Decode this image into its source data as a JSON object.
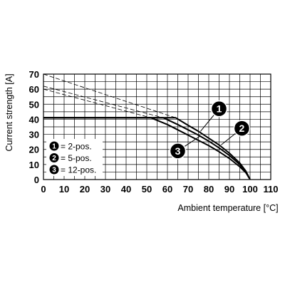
{
  "chart_data": {
    "type": "line",
    "xlabel": "Ambient temperature [°C]",
    "ylabel": "Current strength [A]",
    "xlim": [
      0,
      110
    ],
    "ylim": [
      0,
      70
    ],
    "x_ticks": [
      0,
      10,
      20,
      30,
      40,
      50,
      60,
      70,
      80,
      90,
      100,
      110
    ],
    "y_ticks": [
      0,
      10,
      20,
      30,
      40,
      50,
      60,
      70
    ],
    "x_grid_step": 5,
    "y_grid_step": 5,
    "grid": true,
    "legend_position": "bottom-left",
    "legend": [
      {
        "marker": "1",
        "label": "= 2-pos."
      },
      {
        "marker": "2",
        "label": "= 5-pos."
      },
      {
        "marker": "3",
        "label": "= 12-pos."
      }
    ],
    "series": [
      {
        "marker": "1",
        "style": "solid",
        "points": [
          [
            0,
            41
          ],
          [
            64,
            41
          ],
          [
            70,
            36
          ],
          [
            75,
            32
          ],
          [
            80,
            27.5
          ],
          [
            85,
            23
          ],
          [
            90,
            17.5
          ],
          [
            95,
            11
          ],
          [
            98,
            5.5
          ],
          [
            100,
            0
          ]
        ]
      },
      {
        "marker": "2",
        "style": "solid",
        "points": [
          [
            0,
            41
          ],
          [
            58,
            41
          ],
          [
            65,
            36.5
          ],
          [
            70,
            33
          ],
          [
            75,
            29.5
          ],
          [
            80,
            25.5
          ],
          [
            85,
            21
          ],
          [
            90,
            16
          ],
          [
            95,
            10
          ],
          [
            98,
            5
          ],
          [
            100,
            0
          ]
        ]
      },
      {
        "marker": "3",
        "style": "solid",
        "points": [
          [
            0,
            41
          ],
          [
            52,
            41
          ],
          [
            60,
            36.5
          ],
          [
            65,
            33
          ],
          [
            70,
            29.5
          ],
          [
            75,
            26
          ],
          [
            80,
            22.5
          ],
          [
            85,
            18.5
          ],
          [
            90,
            14
          ],
          [
            95,
            8.5
          ],
          [
            98,
            4.5
          ],
          [
            100,
            0
          ]
        ]
      },
      {
        "marker": "1",
        "style": "dashed",
        "points": [
          [
            0,
            70
          ],
          [
            64,
            41
          ]
        ]
      },
      {
        "marker": "2",
        "style": "dashed",
        "points": [
          [
            0,
            62
          ],
          [
            58,
            41
          ]
        ]
      },
      {
        "marker": "3",
        "style": "dashed",
        "points": [
          [
            0,
            60
          ],
          [
            52,
            41
          ]
        ]
      }
    ],
    "callouts": [
      {
        "marker": "1",
        "badge": [
          85,
          47
        ],
        "target": [
          76,
          32
        ]
      },
      {
        "marker": "2",
        "badge": [
          96,
          34
        ],
        "target": [
          86,
          23
        ]
      },
      {
        "marker": "3",
        "badge": [
          65,
          19
        ],
        "target": [
          76,
          29
        ]
      }
    ]
  }
}
